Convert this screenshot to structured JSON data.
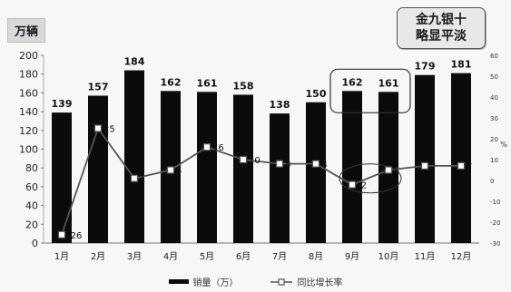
{
  "unit_label": "万辆",
  "callout": {
    "line1": "金九银十",
    "line2": "略显平淡"
  },
  "chart_data": {
    "type": "bar",
    "categories": [
      "1月",
      "2月",
      "3月",
      "4月",
      "5月",
      "6月",
      "7月",
      "8月",
      "9月",
      "10月",
      "11月",
      "12月"
    ],
    "series": [
      {
        "name": "销量（万）",
        "type": "bar",
        "axis": "left",
        "color": "#0b0b0b",
        "values": [
          139,
          157,
          184,
          162,
          161,
          158,
          138,
          150,
          162,
          161,
          179,
          181
        ]
      },
      {
        "name": "同比增长率",
        "type": "line",
        "axis": "right",
        "color": "#555555",
        "values": [
          -26,
          25,
          1,
          5,
          16,
          10,
          8,
          8,
          -2,
          5,
          7,
          7
        ]
      }
    ],
    "ylim_left": [
      0,
      200
    ],
    "yticks_left": [
      0,
      20,
      40,
      60,
      80,
      100,
      120,
      140,
      160,
      180,
      200
    ],
    "ylim_right": [
      -30,
      60
    ],
    "yticks_right": [
      -30,
      -20,
      -10,
      0,
      10,
      20,
      30,
      40,
      50,
      60
    ],
    "ylabel_right": "%",
    "legend_position": "bottom"
  }
}
